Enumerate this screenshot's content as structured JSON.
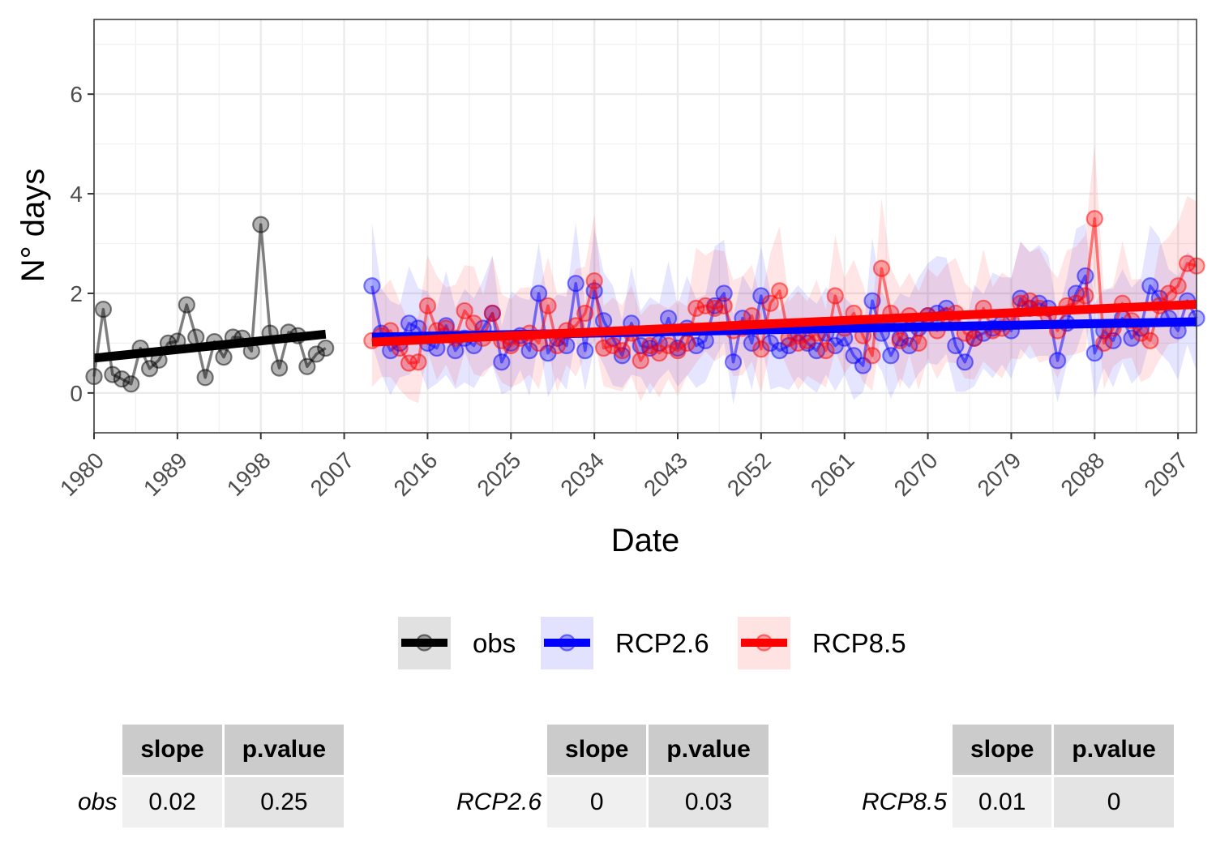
{
  "chart_data": {
    "type": "line",
    "xlabel": "Date",
    "ylabel": "N° days",
    "xlim": [
      1980,
      2099
    ],
    "ylim": [
      -0.8,
      7.5
    ],
    "x_ticks": [
      1980,
      1989,
      1998,
      2007,
      2016,
      2025,
      2034,
      2043,
      2052,
      2061,
      2070,
      2079,
      2088,
      2097
    ],
    "y_ticks": [
      0,
      2,
      4,
      6
    ],
    "grid": true,
    "legend_position": "bottom",
    "series": [
      {
        "name": "obs",
        "color": "#000000",
        "x": [
          1980,
          1981,
          1982,
          1983,
          1984,
          1985,
          1986,
          1987,
          1988,
          1989,
          1990,
          1991,
          1992,
          1993,
          1994,
          1995,
          1996,
          1997,
          1998,
          1999,
          2000,
          2001,
          2002,
          2003,
          2004,
          2005
        ],
        "values": [
          0.33,
          1.68,
          0.37,
          0.28,
          0.18,
          0.9,
          0.49,
          0.66,
          1.0,
          1.04,
          1.77,
          1.12,
          0.31,
          1.03,
          0.72,
          1.12,
          1.1,
          0.84,
          3.38,
          1.2,
          0.5,
          1.22,
          1.15,
          0.53,
          0.78,
          0.9
        ],
        "trend": [
          0.7,
          1.18
        ]
      },
      {
        "name": "RCP2.6",
        "color": "#0000ff",
        "x": [
          2010,
          2011,
          2012,
          2013,
          2014,
          2015,
          2016,
          2017,
          2018,
          2019,
          2020,
          2021,
          2022,
          2023,
          2024,
          2025,
          2026,
          2027,
          2028,
          2029,
          2030,
          2031,
          2032,
          2033,
          2034,
          2035,
          2036,
          2037,
          2038,
          2039,
          2040,
          2041,
          2042,
          2043,
          2044,
          2045,
          2046,
          2047,
          2048,
          2049,
          2050,
          2051,
          2052,
          2053,
          2054,
          2055,
          2056,
          2057,
          2058,
          2059,
          2060,
          2061,
          2062,
          2063,
          2064,
          2065,
          2066,
          2067,
          2068,
          2069,
          2070,
          2071,
          2072,
          2073,
          2074,
          2075,
          2076,
          2077,
          2078,
          2079,
          2080,
          2081,
          2082,
          2083,
          2084,
          2085,
          2086,
          2087,
          2088,
          2089,
          2090,
          2091,
          2092,
          2093,
          2094,
          2095,
          2096,
          2097,
          2098,
          2099
        ],
        "values": [
          2.15,
          1.2,
          0.85,
          1.0,
          1.4,
          1.3,
          1.0,
          0.9,
          1.35,
          0.85,
          1.1,
          0.95,
          1.3,
          1.6,
          0.62,
          1.0,
          1.15,
          0.85,
          2.0,
          0.8,
          1.1,
          0.95,
          2.2,
          0.85,
          2.05,
          1.45,
          1.1,
          0.75,
          1.4,
          0.95,
          0.9,
          1.0,
          1.5,
          0.9,
          1.3,
          0.95,
          1.05,
          1.75,
          2.0,
          0.62,
          1.5,
          1.0,
          1.95,
          1.0,
          0.85,
          0.95,
          1.2,
          1.0,
          0.85,
          1.2,
          0.95,
          1.1,
          0.75,
          0.55,
          1.85,
          1.2,
          0.75,
          1.1,
          0.95,
          1.3,
          1.55,
          1.6,
          1.7,
          0.95,
          0.62,
          1.1,
          1.2,
          1.3,
          1.4,
          1.25,
          1.9,
          1.7,
          1.8,
          1.7,
          0.65,
          1.4,
          2.0,
          2.35,
          0.8,
          1.25,
          1.05,
          1.5,
          1.1,
          1.3,
          2.15,
          1.9,
          1.5,
          1.25,
          1.85,
          1.5
        ],
        "trend": [
          1.12,
          1.43
        ]
      },
      {
        "name": "RCP8.5",
        "color": "#ff0000",
        "x": [
          2010,
          2011,
          2012,
          2013,
          2014,
          2015,
          2016,
          2017,
          2018,
          2019,
          2020,
          2021,
          2022,
          2023,
          2024,
          2025,
          2026,
          2027,
          2028,
          2029,
          2030,
          2031,
          2032,
          2033,
          2034,
          2035,
          2036,
          2037,
          2038,
          2039,
          2040,
          2041,
          2042,
          2043,
          2044,
          2045,
          2046,
          2047,
          2048,
          2049,
          2050,
          2051,
          2052,
          2053,
          2054,
          2055,
          2056,
          2057,
          2058,
          2059,
          2060,
          2061,
          2062,
          2063,
          2064,
          2065,
          2066,
          2067,
          2068,
          2069,
          2070,
          2071,
          2072,
          2073,
          2074,
          2075,
          2076,
          2077,
          2078,
          2079,
          2080,
          2081,
          2082,
          2083,
          2084,
          2085,
          2086,
          2087,
          2088,
          2089,
          2090,
          2091,
          2092,
          2093,
          2094,
          2095,
          2096,
          2097,
          2098,
          2099
        ],
        "values": [
          1.05,
          1.15,
          1.25,
          0.9,
          0.6,
          0.62,
          1.75,
          1.25,
          1.3,
          1.1,
          1.65,
          1.4,
          1.1,
          1.6,
          1.05,
          0.95,
          1.1,
          1.2,
          1.0,
          1.75,
          0.95,
          1.25,
          1.35,
          1.6,
          2.25,
          0.9,
          0.95,
          0.85,
          1.2,
          0.65,
          0.95,
          0.8,
          0.95,
          0.85,
          1.0,
          1.7,
          1.75,
          1.7,
          1.75,
          1.25,
          1.3,
          1.55,
          0.88,
          1.8,
          2.05,
          1.1,
          1.0,
          1.05,
          1.2,
          0.85,
          1.95,
          1.3,
          1.6,
          1.15,
          0.75,
          2.5,
          1.6,
          1.05,
          1.55,
          1.0,
          1.55,
          1.25,
          1.55,
          1.6,
          1.2,
          1.1,
          1.7,
          1.25,
          1.3,
          1.45,
          1.8,
          1.85,
          1.7,
          1.55,
          1.25,
          1.75,
          1.8,
          1.95,
          3.5,
          1.0,
          1.3,
          1.8,
          1.45,
          1.2,
          1.05,
          1.75,
          2.0,
          2.15,
          2.6,
          2.55
        ],
        "trend": [
          1.02,
          1.78
        ]
      }
    ]
  },
  "legend": {
    "items": [
      {
        "label": "obs",
        "color": "#000000",
        "fill": "#e1e1e1"
      },
      {
        "label": "RCP2.6",
        "color": "#0000ff",
        "fill": "#e2e2ff"
      },
      {
        "label": "RCP8.5",
        "color": "#ff0000",
        "fill": "#ffe2e2"
      }
    ]
  },
  "tables": [
    {
      "row_label": "obs",
      "headers": [
        "slope",
        "p.value"
      ],
      "values": [
        "0.02",
        "0.25"
      ]
    },
    {
      "row_label": "RCP2.6",
      "headers": [
        "slope",
        "p.value"
      ],
      "values": [
        "0",
        "0.03"
      ]
    },
    {
      "row_label": "RCP8.5",
      "headers": [
        "slope",
        "p.value"
      ],
      "values": [
        "0.01",
        "0"
      ]
    }
  ]
}
